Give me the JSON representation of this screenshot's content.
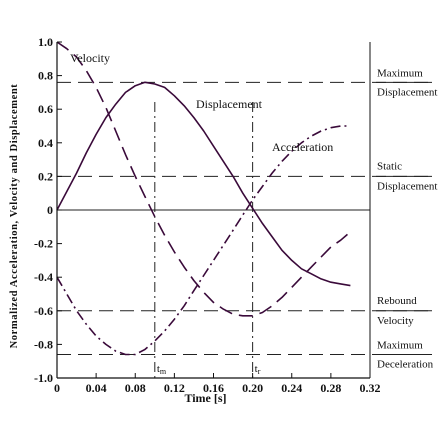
{
  "chart_data": {
    "type": "line",
    "title": "",
    "xlabel": "Time [s]",
    "ylabel": "Normalized Acceleration, Velocity and Displacement",
    "xlim": [
      0,
      0.32
    ],
    "ylim": [
      -1.0,
      1.0
    ],
    "x_ticks": [
      0,
      0.04,
      0.08,
      0.12,
      0.16,
      0.2,
      0.24,
      0.28,
      0.32
    ],
    "x_tick_labels": [
      "0",
      "0.04",
      "0.08",
      "0.12",
      "0.16",
      "0.20",
      "0.24",
      "0.28",
      "0.32"
    ],
    "y_ticks": [
      1.0,
      0.8,
      0.6,
      0.4,
      0.2,
      0,
      -0.2,
      -0.4,
      -0.6,
      -0.8,
      -1.0
    ],
    "y_tick_labels": [
      "1.0",
      "0.8",
      "0.6",
      "0.4",
      "0.2",
      "0",
      "-0.2",
      "-0.4",
      "-0.6",
      "-0.8",
      "-1.0"
    ],
    "series": [
      {
        "name": "Displacement",
        "style": "solid",
        "color": "#3a0a3a",
        "x": [
          0,
          0.01,
          0.02,
          0.03,
          0.04,
          0.05,
          0.06,
          0.07,
          0.08,
          0.09,
          0.1,
          0.11,
          0.12,
          0.13,
          0.14,
          0.15,
          0.16,
          0.17,
          0.18,
          0.19,
          0.2,
          0.21,
          0.22,
          0.23,
          0.24,
          0.25,
          0.26,
          0.27,
          0.28,
          0.29,
          0.3
        ],
        "values": [
          0.0,
          0.11,
          0.22,
          0.34,
          0.45,
          0.55,
          0.63,
          0.7,
          0.74,
          0.76,
          0.75,
          0.73,
          0.68,
          0.62,
          0.55,
          0.47,
          0.38,
          0.29,
          0.2,
          0.1,
          0.01,
          -0.08,
          -0.16,
          -0.24,
          -0.3,
          -0.35,
          -0.38,
          -0.41,
          -0.43,
          -0.44,
          -0.45
        ]
      },
      {
        "name": "Velocity",
        "style": "dash",
        "color": "#3a0a3a",
        "x": [
          0,
          0.01,
          0.02,
          0.03,
          0.04,
          0.05,
          0.06,
          0.07,
          0.08,
          0.09,
          0.1,
          0.11,
          0.12,
          0.13,
          0.14,
          0.15,
          0.16,
          0.17,
          0.18,
          0.19,
          0.2,
          0.21,
          0.22,
          0.23,
          0.24,
          0.25,
          0.26,
          0.27,
          0.28,
          0.29,
          0.3
        ],
        "values": [
          1.0,
          0.96,
          0.91,
          0.83,
          0.73,
          0.61,
          0.47,
          0.33,
          0.2,
          0.08,
          -0.04,
          -0.15,
          -0.25,
          -0.34,
          -0.42,
          -0.49,
          -0.55,
          -0.59,
          -0.62,
          -0.63,
          -0.63,
          -0.61,
          -0.57,
          -0.52,
          -0.46,
          -0.4,
          -0.34,
          -0.28,
          -0.22,
          -0.18,
          -0.13
        ]
      },
      {
        "name": "Acceleration",
        "style": "dashdot",
        "color": "#3a0a3a",
        "x": [
          0,
          0.01,
          0.02,
          0.03,
          0.04,
          0.05,
          0.06,
          0.07,
          0.08,
          0.09,
          0.1,
          0.11,
          0.12,
          0.13,
          0.14,
          0.15,
          0.16,
          0.17,
          0.18,
          0.19,
          0.2,
          0.21,
          0.22,
          0.23,
          0.24,
          0.25,
          0.26,
          0.27,
          0.28,
          0.29,
          0.3
        ],
        "values": [
          -0.4,
          -0.5,
          -0.6,
          -0.68,
          -0.75,
          -0.8,
          -0.84,
          -0.86,
          -0.86,
          -0.83,
          -0.78,
          -0.72,
          -0.65,
          -0.57,
          -0.48,
          -0.39,
          -0.3,
          -0.21,
          -0.12,
          -0.03,
          0.06,
          0.14,
          0.22,
          0.29,
          0.35,
          0.4,
          0.44,
          0.47,
          0.49,
          0.5,
          0.5
        ]
      }
    ],
    "reference_lines": [
      {
        "axis": "y",
        "value": 0.76,
        "style": "dash",
        "label": "Maximum Displacement",
        "label_lines": [
          "Maximum",
          "Displacement"
        ]
      },
      {
        "axis": "y",
        "value": 0.2,
        "style": "dash",
        "label": "Static Displacement",
        "label_lines": [
          "Static",
          "Displacement"
        ]
      },
      {
        "axis": "y",
        "value": 0,
        "style": "solid",
        "label": ""
      },
      {
        "axis": "y",
        "value": -0.6,
        "style": "dash",
        "label": "Rebound Velocity",
        "label_lines": [
          "Rebound",
          "Velocity"
        ]
      },
      {
        "axis": "y",
        "value": -0.86,
        "style": "dash",
        "label": "Maximum Deceleration",
        "label_lines": [
          "Maximum",
          "Deceleration"
        ]
      },
      {
        "axis": "x",
        "value": 0.1,
        "style": "dashdot",
        "label": "tm",
        "label_main": "t",
        "label_sub": "m"
      },
      {
        "axis": "x",
        "value": 0.2,
        "style": "dashdot",
        "label": "tr",
        "label_main": "t",
        "label_sub": "r"
      }
    ],
    "annotations": [
      {
        "text": "Velocity",
        "series": "Velocity"
      },
      {
        "text": "Displacement",
        "series": "Displacement"
      },
      {
        "text": "Acceleration",
        "series": "Acceleration"
      }
    ],
    "grid": false,
    "legend": "none"
  }
}
